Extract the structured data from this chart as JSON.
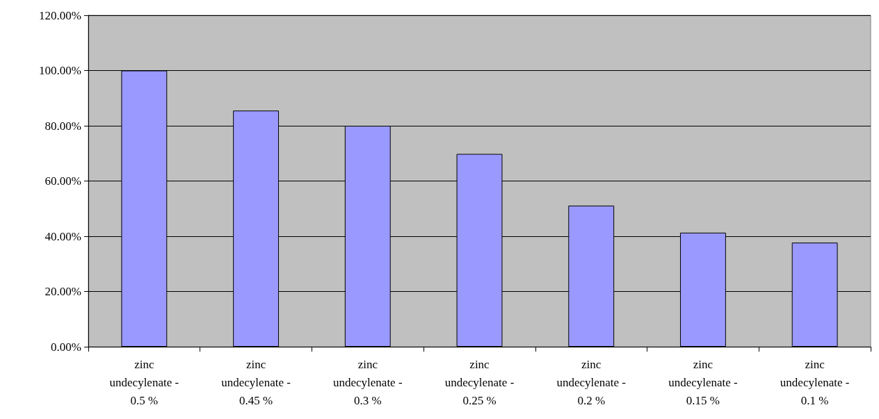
{
  "chart_data": {
    "type": "bar",
    "categories": [
      "zinc\nundecylenate -\n0.5 %",
      "zinc\nundecylenate -\n0.45 %",
      "zinc\nundecylenate -\n0.3 %",
      "zinc\nundecylenate -\n0.25 %",
      "zinc\nundecylenate -\n0.2 %",
      "zinc\nundecylenate -\n0.15 %",
      "zinc\nundecylenate -\n0.1 %"
    ],
    "values": [
      100,
      85.5,
      80,
      69.8,
      51.1,
      41.3,
      37.7
    ],
    "color": "#9999ff",
    "ylim": [
      0,
      120
    ],
    "yticks": [
      {
        "value": 0,
        "label": "0.00%"
      },
      {
        "value": 20,
        "label": "20.00%"
      },
      {
        "value": 40,
        "label": "40.00%"
      },
      {
        "value": 60,
        "label": "60.00%"
      },
      {
        "value": 80,
        "label": "80.00%"
      },
      {
        "value": 100,
        "label": "100.00%"
      },
      {
        "value": 120,
        "label": "120.00%"
      }
    ],
    "grid": "y"
  }
}
